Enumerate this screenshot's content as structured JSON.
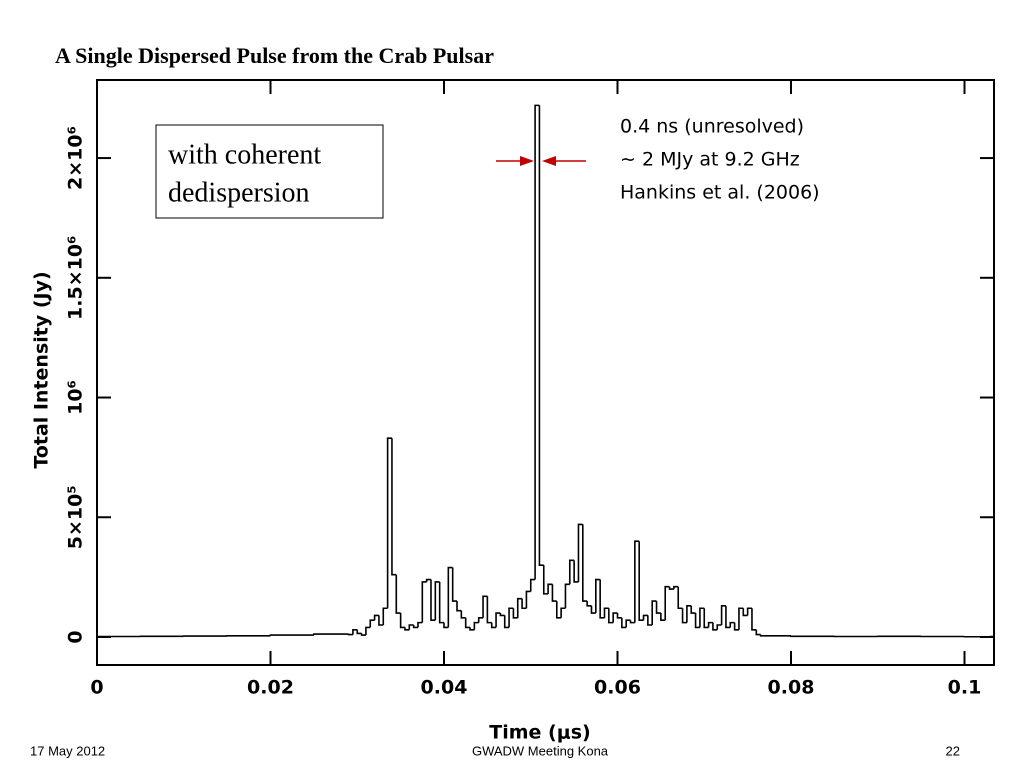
{
  "chart_data": {
    "type": "line",
    "step": true,
    "title": "A Single Dispersed Pulse from the Crab Pulsar",
    "xlabel": "Time (μs)",
    "ylabel": "Total Intensity (Jy)",
    "box_text": [
      "with coherent",
      "dedispersion"
    ],
    "annotations": [
      "0.4 ns (unresolved)",
      "∼ 2 MJy at 9.2 GHz",
      "Hankins et al. (2006)"
    ],
    "color": "#000000",
    "xlim": [
      0,
      0.1034
    ],
    "ylim": [
      -117000,
      2326000
    ],
    "xticks": [
      0,
      0.02,
      0.04,
      0.06,
      0.08,
      0.1
    ],
    "yticks": [
      0,
      {
        "value": 500000,
        "label": "5×10⁵"
      },
      {
        "value": 1000000,
        "label": "10⁶"
      },
      {
        "value": 1500000,
        "label": "1.5×10⁶"
      },
      {
        "value": 2000000,
        "label": "2×10⁶"
      }
    ],
    "x": [
      0,
      0.005,
      0.01,
      0.015,
      0.02,
      0.025,
      0.029,
      0.0295,
      0.03,
      0.0305,
      0.031,
      0.0315,
      0.032,
      0.0325,
      0.033,
      0.0335,
      0.034,
      0.0345,
      0.035,
      0.0355,
      0.036,
      0.0365,
      0.037,
      0.0375,
      0.038,
      0.0385,
      0.039,
      0.0395,
      0.04,
      0.0405,
      0.041,
      0.0415,
      0.042,
      0.0425,
      0.043,
      0.0435,
      0.044,
      0.0445,
      0.045,
      0.0455,
      0.046,
      0.0465,
      0.047,
      0.0475,
      0.048,
      0.0485,
      0.049,
      0.0495,
      0.05,
      0.0505,
      0.051,
      0.0515,
      0.052,
      0.0525,
      0.053,
      0.0535,
      0.054,
      0.0545,
      0.055,
      0.0555,
      0.056,
      0.0565,
      0.057,
      0.0575,
      0.058,
      0.0585,
      0.059,
      0.0595,
      0.06,
      0.0605,
      0.061,
      0.0615,
      0.062,
      0.0625,
      0.063,
      0.0635,
      0.064,
      0.0645,
      0.065,
      0.0655,
      0.066,
      0.0665,
      0.067,
      0.0675,
      0.068,
      0.0685,
      0.069,
      0.0695,
      0.07,
      0.0705,
      0.071,
      0.0715,
      0.072,
      0.0725,
      0.073,
      0.0735,
      0.074,
      0.0745,
      0.075,
      0.0755,
      0.076,
      0.0765,
      0.08,
      0.085,
      0.09,
      0.095,
      0.1,
      0.103
    ],
    "values": [
      2000,
      3000,
      4000,
      5000,
      8000,
      12000,
      10000,
      30000,
      15000,
      8000,
      40000,
      70000,
      90000,
      50000,
      120000,
      830000,
      260000,
      100000,
      40000,
      30000,
      50000,
      40000,
      60000,
      230000,
      240000,
      70000,
      230000,
      60000,
      40000,
      290000,
      150000,
      110000,
      80000,
      40000,
      30000,
      60000,
      80000,
      170000,
      60000,
      40000,
      100000,
      90000,
      40000,
      120000,
      80000,
      160000,
      120000,
      190000,
      240000,
      2220000,
      300000,
      180000,
      220000,
      150000,
      80000,
      120000,
      220000,
      320000,
      230000,
      470000,
      150000,
      130000,
      100000,
      240000,
      80000,
      120000,
      60000,
      100000,
      80000,
      40000,
      70000,
      60000,
      400000,
      70000,
      90000,
      50000,
      150000,
      100000,
      70000,
      210000,
      200000,
      210000,
      120000,
      60000,
      130000,
      100000,
      40000,
      120000,
      40000,
      60000,
      30000,
      50000,
      130000,
      40000,
      60000,
      30000,
      120000,
      90000,
      120000,
      30000,
      10000,
      5000,
      3000,
      2000,
      3000,
      2000,
      1000,
      2000
    ]
  },
  "footer": {
    "date": "17 May 2012",
    "event": "GWADW Meeting Kona",
    "page": "22"
  }
}
